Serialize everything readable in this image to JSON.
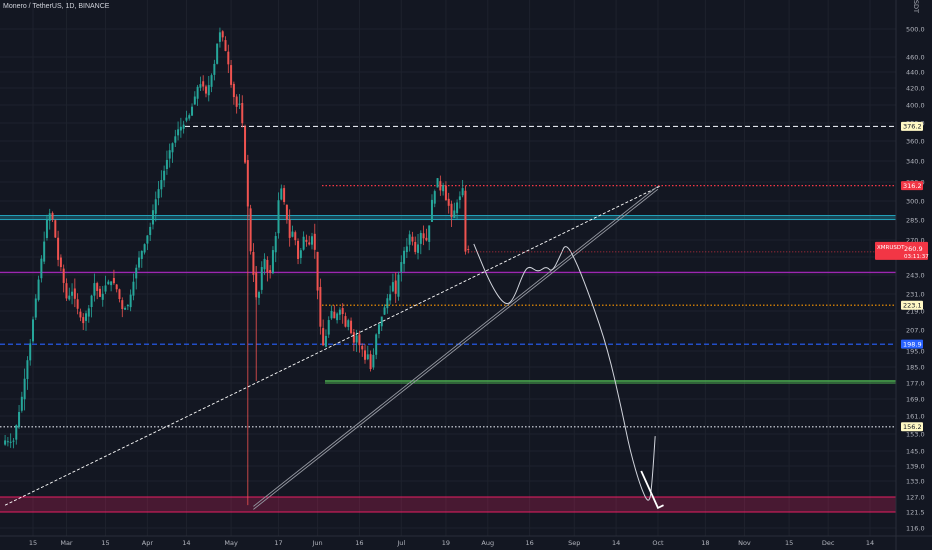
{
  "header": {
    "title": "Monero / TetherUS, 1D, BINANCE"
  },
  "axis": {
    "currency": "USDT"
  },
  "chart_data": {
    "type": "candlestick",
    "symbol": "XMRUSDT",
    "title": "Monero / TetherUS, 1D, BINANCE",
    "ylim": [
      112,
      512
    ],
    "y_ticks": [
      "116.0",
      "121.5",
      "127.0",
      "133.0",
      "139.0",
      "145.0",
      "153.0",
      "161.0",
      "169.0",
      "177.0",
      "185.0",
      "195.0",
      "207.0",
      "219.0",
      "231.0",
      "243.0",
      "257.0",
      "270.0",
      "285.0",
      "300.0",
      "320.0",
      "340.0",
      "360.0",
      "380.0",
      "400.0",
      "420.0",
      "440.0",
      "460.0",
      "500.0"
    ],
    "x_ticks": [
      "15",
      "Mar",
      "15",
      "Apr",
      "14",
      "May",
      "17",
      "Jun",
      "16",
      "Jul",
      "19",
      "Aug",
      "16",
      "Sep",
      "14",
      "Oct",
      "18",
      "Nov",
      "15",
      "Dec",
      "14"
    ],
    "x_tick_days": [
      0,
      12,
      26,
      41,
      55,
      71,
      88,
      102,
      117,
      132,
      148,
      163,
      178,
      194,
      209,
      224,
      241,
      255,
      271,
      285,
      300
    ],
    "price_anchors": [
      [
        -10,
        150
      ],
      [
        -7,
        150
      ],
      [
        -4,
        170
      ],
      [
        -1,
        200
      ],
      [
        2,
        240
      ],
      [
        4,
        270
      ],
      [
        5,
        284
      ],
      [
        6,
        290
      ],
      [
        7,
        285
      ],
      [
        8,
        272
      ],
      [
        9,
        255
      ],
      [
        10,
        248
      ],
      [
        12,
        228
      ],
      [
        14,
        233
      ],
      [
        16,
        220
      ],
      [
        18,
        212
      ],
      [
        20,
        222
      ],
      [
        22,
        238
      ],
      [
        24,
        228
      ],
      [
        26,
        236
      ],
      [
        28,
        240
      ],
      [
        30,
        234
      ],
      [
        32,
        221
      ],
      [
        34,
        223
      ],
      [
        36,
        240
      ],
      [
        38,
        256
      ],
      [
        40,
        268
      ],
      [
        42,
        280
      ],
      [
        44,
        303
      ],
      [
        46,
        322
      ],
      [
        48,
        340
      ],
      [
        50,
        358
      ],
      [
        52,
        372
      ],
      [
        54,
        380
      ],
      [
        56,
        388
      ],
      [
        58,
        408
      ],
      [
        59,
        422
      ],
      [
        60,
        426
      ],
      [
        61,
        420
      ],
      [
        62,
        412
      ],
      [
        63,
        424
      ],
      [
        64,
        438
      ],
      [
        65,
        452
      ],
      [
        66,
        480
      ],
      [
        67,
        494
      ],
      [
        68,
        486
      ],
      [
        69,
        470
      ],
      [
        70,
        452
      ],
      [
        71,
        426
      ],
      [
        72,
        410
      ],
      [
        73,
        398
      ],
      [
        74,
        400
      ],
      [
        75,
        378
      ],
      [
        76,
        340
      ],
      [
        77,
        295
      ],
      [
        78,
        262
      ],
      [
        79,
        244
      ],
      [
        80,
        228
      ],
      [
        81,
        232
      ],
      [
        82,
        248
      ],
      [
        83,
        256
      ],
      [
        84,
        246
      ],
      [
        85,
        244
      ],
      [
        86,
        262
      ],
      [
        87,
        274
      ],
      [
        88,
        300
      ],
      [
        89,
        312
      ],
      [
        90,
        298
      ],
      [
        91,
        286
      ],
      [
        92,
        272
      ],
      [
        93,
        276
      ],
      [
        94,
        270
      ],
      [
        95,
        256
      ],
      [
        96,
        262
      ],
      [
        97,
        272
      ],
      [
        98,
        270
      ],
      [
        99,
        268
      ],
      [
        100,
        274
      ],
      [
        101,
        262
      ],
      [
        102,
        234
      ],
      [
        103,
        208
      ],
      [
        104,
        198
      ],
      [
        105,
        204
      ],
      [
        106,
        213
      ],
      [
        107,
        218
      ],
      [
        108,
        214
      ],
      [
        109,
        218
      ],
      [
        110,
        221
      ],
      [
        111,
        217
      ],
      [
        112,
        210
      ],
      [
        113,
        214
      ],
      [
        114,
        206
      ],
      [
        115,
        200
      ],
      [
        116,
        204
      ],
      [
        117,
        198
      ],
      [
        118,
        196
      ],
      [
        119,
        190
      ],
      [
        120,
        193
      ],
      [
        121,
        184
      ],
      [
        122,
        192
      ],
      [
        123,
        204
      ],
      [
        124,
        210
      ],
      [
        125,
        216
      ],
      [
        126,
        221
      ],
      [
        127,
        228
      ],
      [
        128,
        232
      ],
      [
        129,
        238
      ],
      [
        130,
        230
      ],
      [
        131,
        244
      ],
      [
        132,
        252
      ],
      [
        133,
        262
      ],
      [
        134,
        266
      ],
      [
        135,
        274
      ],
      [
        136,
        270
      ],
      [
        137,
        262
      ],
      [
        138,
        268
      ],
      [
        139,
        276
      ],
      [
        140,
        272
      ],
      [
        141,
        270
      ],
      [
        142,
        282
      ],
      [
        143,
        300
      ],
      [
        144,
        312
      ],
      [
        145,
        322
      ],
      [
        146,
        312
      ],
      [
        147,
        318
      ],
      [
        148,
        302
      ],
      [
        149,
        296
      ],
      [
        150,
        286
      ],
      [
        151,
        292
      ],
      [
        152,
        300
      ],
      [
        153,
        304
      ],
      [
        154,
        312
      ],
      [
        155,
        262
      ],
      [
        156,
        262
      ]
    ],
    "levels": [
      {
        "value": 376.2,
        "label": "376.2",
        "style": "dashed",
        "color": "#e0e3eb"
      },
      {
        "value": 316.2,
        "label": "316.2",
        "style": "dotted",
        "color": "#f23645"
      },
      {
        "value": 287.0,
        "label": "",
        "style": "band",
        "color": "#22a0b8"
      },
      {
        "value": 245.0,
        "label": "",
        "style": "solid",
        "color": "#9c27b0"
      },
      {
        "value": 223.1,
        "label": "223.1",
        "style": "dotted",
        "color": "#ff9800"
      },
      {
        "value": 198.9,
        "label": "198.9",
        "style": "dashed",
        "color": "#2962ff"
      },
      {
        "value": 178.0,
        "label": "",
        "style": "solid",
        "color": "#4caf50"
      },
      {
        "value": 156.2,
        "label": "156.2",
        "style": "dotted",
        "color": "#e0e3eb"
      }
    ],
    "support_zone": {
      "from": 121.5,
      "to": 127.0,
      "color": "#e91e63"
    },
    "current": {
      "label": "XMRUSDT",
      "price": "260.9",
      "timer": "03:11:37",
      "value": 260.9,
      "color": "#f23645"
    },
    "trendlines": [
      {
        "from": [
          -10,
          124
        ],
        "to": [
          225,
          316
        ],
        "style": "dashed",
        "color": "#ffffff"
      },
      {
        "from": [
          79,
          123
        ],
        "to": [
          224,
          314
        ],
        "style": "double",
        "color": "#9598a1"
      }
    ],
    "projection": [
      [
        158,
        267
      ],
      [
        164,
        237
      ],
      [
        169,
        223
      ],
      [
        172,
        226
      ],
      [
        176,
        246
      ],
      [
        178,
        250
      ],
      [
        181,
        245
      ],
      [
        184,
        250
      ],
      [
        186,
        245
      ],
      [
        189,
        258
      ],
      [
        191,
        268
      ],
      [
        195,
        252
      ],
      [
        200,
        227
      ],
      [
        206,
        196
      ],
      [
        211,
        164
      ],
      [
        214,
        145
      ],
      [
        218,
        130
      ],
      [
        221,
        124
      ],
      [
        222,
        134
      ],
      [
        223,
        152
      ]
    ],
    "projection_mark": [
      [
        218,
        137
      ],
      [
        224,
        123
      ],
      [
        226,
        124
      ]
    ],
    "grid": true
  }
}
